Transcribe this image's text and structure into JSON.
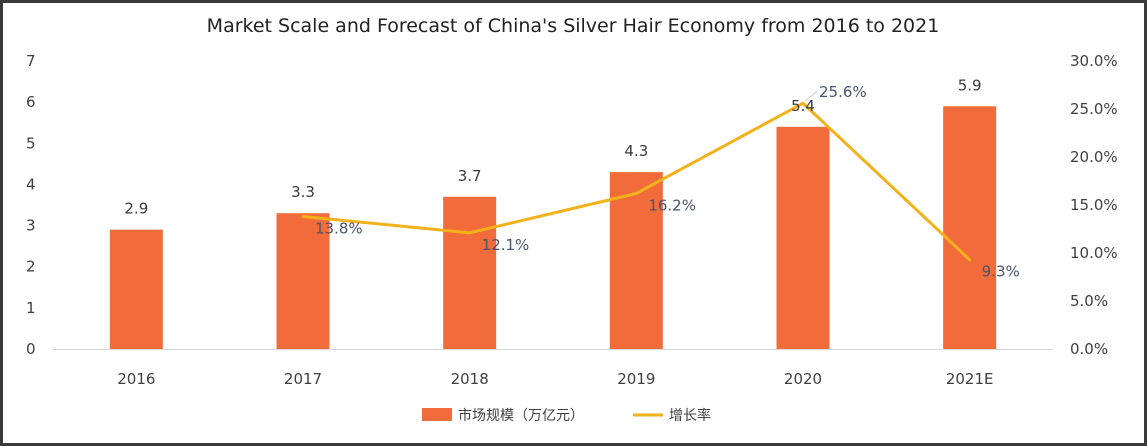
{
  "chart_data": {
    "type": "bar",
    "title": "Market Scale and Forecast of China's Silver Hair Economy from 2016 to 2021",
    "categories": [
      "2016",
      "2017",
      "2018",
      "2019",
      "2020",
      "2021E"
    ],
    "series": [
      {
        "name": "市场规模（万亿元）",
        "type": "bar",
        "axis": "left",
        "color": "#F26B3A",
        "values": [
          2.9,
          3.3,
          3.7,
          4.3,
          5.4,
          5.9
        ],
        "value_labels": [
          "2.9",
          "3.3",
          "3.7",
          "4.3",
          "5.4",
          "5.9"
        ]
      },
      {
        "name": "增长率",
        "type": "line",
        "axis": "right",
        "color": "#F2B21B",
        "values": [
          null,
          13.8,
          12.1,
          16.2,
          25.6,
          9.3
        ],
        "value_labels": [
          "",
          "13.8%",
          "12.1%",
          "16.2%",
          "25.6%",
          "9.3%"
        ]
      }
    ],
    "y_left": {
      "min": 0,
      "max": 7,
      "ticks": [
        "0",
        "1",
        "2",
        "3",
        "4",
        "5",
        "6",
        "7"
      ]
    },
    "y_right": {
      "min": 0,
      "max": 30,
      "ticks": [
        "0.0%",
        "5.0%",
        "10.0%",
        "15.0%",
        "20.0%",
        "25.0%",
        "30.0%"
      ]
    },
    "xlabel": "",
    "ylabel": "",
    "grid": false,
    "legend_position": "bottom-center"
  }
}
